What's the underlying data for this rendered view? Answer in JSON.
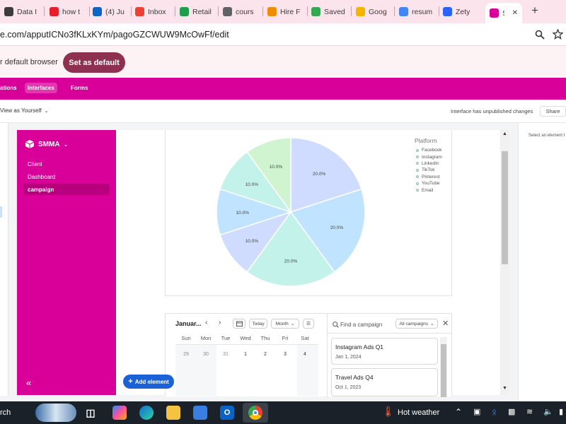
{
  "browser": {
    "tabs": [
      {
        "label": "Data I",
        "icon": "openai-icon",
        "color": "#3c3c3c"
      },
      {
        "label": "how t",
        "icon": "youtube-icon",
        "color": "#e5202a"
      },
      {
        "label": "(4) Ju",
        "icon": "linkedin-icon",
        "color": "#0a66c2"
      },
      {
        "label": "Inbox",
        "icon": "gmail-icon",
        "color": "#ea4335"
      },
      {
        "label": "Retail",
        "icon": "retail-icon",
        "color": "#1e9e4a"
      },
      {
        "label": "cours",
        "icon": "globe-icon",
        "color": "#5f6368"
      },
      {
        "label": "Hire F",
        "icon": "star-icon",
        "color": "#f08c00"
      },
      {
        "label": "Saved",
        "icon": "google-drive-icon",
        "color": "#34a853"
      },
      {
        "label": "Goog",
        "icon": "keep-icon",
        "color": "#f4b400"
      },
      {
        "label": "resum",
        "icon": "google-icon",
        "color": "#4285f4"
      },
      {
        "label": "Zety",
        "icon": "zety-icon",
        "color": "#2962ff"
      },
      {
        "label": "Sl",
        "icon": "smma-icon",
        "color": "#d9009a",
        "active": true
      }
    ],
    "address": "e.com/apputICNo3fKLxKYm/pagoGZCWUW9McOwFf/edit",
    "banner_text": "r default browser",
    "set_default_label": "Set as default"
  },
  "app_nav": {
    "items": [
      "ations",
      "Interfaces",
      "Forms"
    ],
    "active": "Interfaces"
  },
  "subbar": {
    "view_as": "View as Yourself",
    "status": "Interface has unpublished changes",
    "share": "Share",
    "right_hint": "Select an element t"
  },
  "sidebar": {
    "workspace": "SMMA",
    "items": [
      "Client",
      "Dashboard",
      "campaign"
    ],
    "active": "campaign"
  },
  "chart_data": {
    "type": "pie",
    "legend_title": "Platform",
    "legend_position": "top-right",
    "categories": [
      "Facebook",
      "Instagram",
      "LinkedIn",
      "TikTok",
      "Pinterest",
      "YouTube",
      "Email"
    ],
    "values": [
      20.0,
      20.0,
      20.0,
      10.0,
      10.0,
      10.0,
      10.0
    ],
    "labels": [
      "20.0%",
      "20.0%",
      "20.0%",
      "10.0%",
      "10.0%",
      "10.0%",
      "10.0%"
    ],
    "colors": [
      "#cfdcff",
      "#c0e4ff",
      "#c2f2e9",
      "#cfdcff",
      "#c0e4ff",
      "#c2f2e9",
      "#cff4cf"
    ]
  },
  "calendar": {
    "month": "Januar...",
    "today_label": "Today",
    "view_label": "Month",
    "weekdays": [
      "Sun",
      "Mon",
      "Tue",
      "Wed",
      "Thu",
      "Fri",
      "Sat"
    ],
    "first_row": [
      "29",
      "30",
      "31",
      "1",
      "2",
      "3",
      "4"
    ],
    "search_placeholder": "Find a campaign",
    "filter_label": "All campaigns",
    "cards": [
      {
        "title": "Instagram Ads Q1",
        "date": "Jan 1, 2024"
      },
      {
        "title": "Travel Ads Q4",
        "date": "Oct 1, 2023"
      }
    ]
  },
  "add_element_label": "Add element",
  "taskbar": {
    "search": "rch",
    "weather": "Hot weather"
  }
}
